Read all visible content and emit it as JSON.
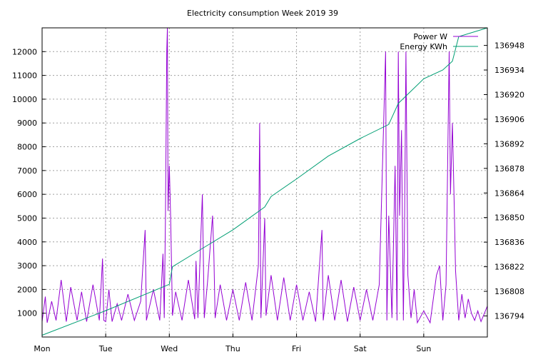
{
  "chart_data": {
    "type": "line",
    "title": "Electricity consumption Week 2019 39",
    "xlabel": "",
    "ylabel": "",
    "x_ticks": [
      "Mon",
      "Tue",
      "Wed",
      "Thu",
      "Fri",
      "Sat",
      "Sun"
    ],
    "x_tick_days": [
      0,
      1,
      2,
      3,
      4,
      5,
      6
    ],
    "xlim": [
      0,
      7
    ],
    "y_left": {
      "ticks": [
        1000,
        2000,
        3000,
        4000,
        5000,
        6000,
        7000,
        8000,
        9000,
        10000,
        11000,
        12000
      ],
      "range": [
        0,
        13000
      ]
    },
    "y_right": {
      "ticks": [
        136794,
        136808,
        136822,
        136836,
        136850,
        136864,
        136878,
        136892,
        136906,
        136920,
        136934,
        136948
      ],
      "range": [
        136782,
        136958
      ]
    },
    "grid": true,
    "legend": "top-right",
    "series": [
      {
        "name": "Power W",
        "axis": "left",
        "color": "#9400d3",
        "points": [
          [
            0.0,
            650
          ],
          [
            0.05,
            1700
          ],
          [
            0.08,
            600
          ],
          [
            0.15,
            1500
          ],
          [
            0.22,
            700
          ],
          [
            0.3,
            2400
          ],
          [
            0.38,
            650
          ],
          [
            0.45,
            2100
          ],
          [
            0.55,
            700
          ],
          [
            0.62,
            1900
          ],
          [
            0.7,
            650
          ],
          [
            0.8,
            2200
          ],
          [
            0.9,
            700
          ],
          [
            0.95,
            3300
          ],
          [
            0.97,
            700
          ],
          [
            1.0,
            650
          ],
          [
            1.05,
            2000
          ],
          [
            1.1,
            650
          ],
          [
            1.18,
            1400
          ],
          [
            1.25,
            700
          ],
          [
            1.35,
            1800
          ],
          [
            1.45,
            700
          ],
          [
            1.55,
            1500
          ],
          [
            1.62,
            4500
          ],
          [
            1.64,
            700
          ],
          [
            1.75,
            2000
          ],
          [
            1.85,
            700
          ],
          [
            1.9,
            3500
          ],
          [
            1.92,
            800
          ],
          [
            1.94,
            5100
          ],
          [
            1.96,
            12000
          ],
          [
            1.97,
            13000
          ],
          [
            1.98,
            5300
          ],
          [
            2.0,
            7200
          ],
          [
            2.02,
            5100
          ],
          [
            2.05,
            900
          ],
          [
            2.1,
            1900
          ],
          [
            2.2,
            700
          ],
          [
            2.3,
            2400
          ],
          [
            2.4,
            750
          ],
          [
            2.42,
            3200
          ],
          [
            2.45,
            800
          ],
          [
            2.52,
            6000
          ],
          [
            2.55,
            800
          ],
          [
            2.6,
            2300
          ],
          [
            2.68,
            5100
          ],
          [
            2.7,
            3500
          ],
          [
            2.72,
            800
          ],
          [
            2.8,
            2200
          ],
          [
            2.9,
            700
          ],
          [
            3.0,
            2000
          ],
          [
            3.1,
            700
          ],
          [
            3.2,
            2300
          ],
          [
            3.3,
            700
          ],
          [
            3.4,
            3000
          ],
          [
            3.42,
            9000
          ],
          [
            3.44,
            800
          ],
          [
            3.5,
            5000
          ],
          [
            3.52,
            900
          ],
          [
            3.6,
            2600
          ],
          [
            3.7,
            700
          ],
          [
            3.8,
            2500
          ],
          [
            3.9,
            700
          ],
          [
            4.0,
            2200
          ],
          [
            4.1,
            700
          ],
          [
            4.2,
            1900
          ],
          [
            4.3,
            650
          ],
          [
            4.4,
            4500
          ],
          [
            4.42,
            700
          ],
          [
            4.5,
            2600
          ],
          [
            4.6,
            700
          ],
          [
            4.7,
            2400
          ],
          [
            4.8,
            650
          ],
          [
            4.9,
            2100
          ],
          [
            5.0,
            700
          ],
          [
            5.1,
            2000
          ],
          [
            5.2,
            700
          ],
          [
            5.3,
            2200
          ],
          [
            5.4,
            12000
          ],
          [
            5.42,
            700
          ],
          [
            5.45,
            5100
          ],
          [
            5.5,
            800
          ],
          [
            5.55,
            7200
          ],
          [
            5.58,
            700
          ],
          [
            5.6,
            12000
          ],
          [
            5.62,
            5100
          ],
          [
            5.65,
            8700
          ],
          [
            5.68,
            700
          ],
          [
            5.7,
            5100
          ],
          [
            5.72,
            12000
          ],
          [
            5.75,
            2600
          ],
          [
            5.8,
            800
          ],
          [
            5.85,
            2000
          ],
          [
            5.9,
            600
          ],
          [
            6.0,
            1100
          ],
          [
            6.1,
            600
          ],
          [
            6.2,
            2600
          ],
          [
            6.25,
            3000
          ],
          [
            6.3,
            700
          ],
          [
            6.35,
            2200
          ],
          [
            6.4,
            12000
          ],
          [
            6.42,
            6000
          ],
          [
            6.45,
            9000
          ],
          [
            6.48,
            5500
          ],
          [
            6.5,
            2800
          ],
          [
            6.55,
            700
          ],
          [
            6.6,
            1800
          ],
          [
            6.65,
            800
          ],
          [
            6.7,
            1600
          ],
          [
            6.75,
            1000
          ],
          [
            6.8,
            700
          ],
          [
            6.85,
            1100
          ],
          [
            6.9,
            650
          ],
          [
            7.0,
            1300
          ]
        ]
      },
      {
        "name": "Energy KWh",
        "axis": "right",
        "color": "#009e73",
        "points": [
          [
            0.0,
            136783
          ],
          [
            1.0,
            136797
          ],
          [
            2.0,
            136812
          ],
          [
            2.05,
            136822
          ],
          [
            2.5,
            136832
          ],
          [
            3.0,
            136843
          ],
          [
            3.5,
            136856
          ],
          [
            3.6,
            136862
          ],
          [
            4.0,
            136872
          ],
          [
            4.5,
            136885
          ],
          [
            5.0,
            136895
          ],
          [
            5.45,
            136903
          ],
          [
            5.6,
            136915
          ],
          [
            5.8,
            136922
          ],
          [
            6.0,
            136929
          ],
          [
            6.3,
            136934
          ],
          [
            6.45,
            136939
          ],
          [
            6.55,
            136953
          ],
          [
            7.0,
            136958
          ]
        ]
      }
    ]
  }
}
